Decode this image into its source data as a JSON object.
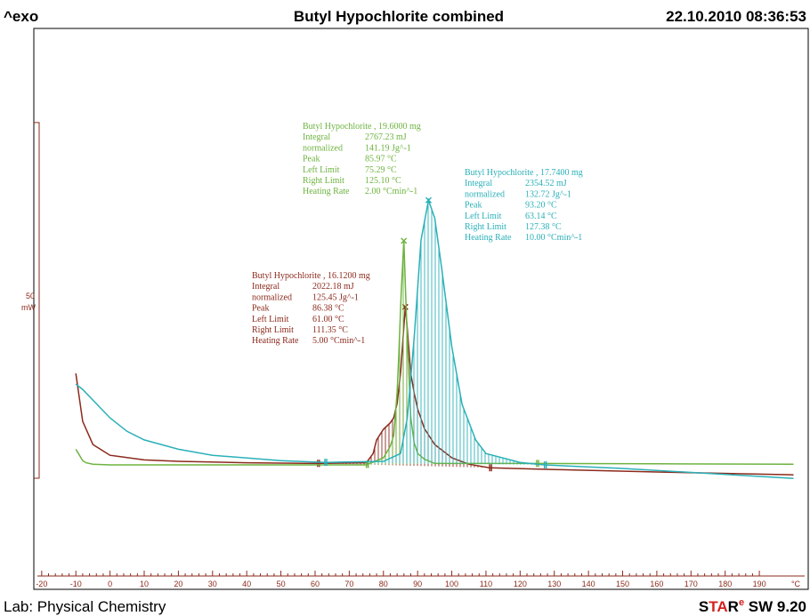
{
  "header": {
    "left": "^exo",
    "title": "Butyl Hypochlorite combined",
    "date": "22.10.2010 08:36:53"
  },
  "footer": {
    "lab": "Lab: Physical Chemistry",
    "brand": [
      "S",
      "TA",
      "R"
    ],
    "edition": "e",
    "version": " SW 9.20"
  },
  "chart_data": {
    "type": "line",
    "xlim": [
      -22.3,
      204.3
    ],
    "xticks": [
      -20,
      -10,
      0,
      10,
      20,
      30,
      40,
      50,
      60,
      70,
      80,
      90,
      100,
      110,
      120,
      130,
      140,
      150,
      160,
      170,
      180,
      190
    ],
    "x_unit": "°C",
    "ylim": [
      -17.6,
      61.25
    ],
    "scale_bar": {
      "value": 50,
      "label": "50",
      "unit": "mW"
    },
    "series": [
      {
        "name": "Butyl  Hypochlorite , 16.1200 mg",
        "color": "#8b2a1c",
        "peak": 86.38,
        "integration": [
          61.0,
          111.35
        ],
        "x": [
          -10,
          -8,
          -5,
          0,
          10,
          20,
          40,
          60,
          75,
          77,
          78,
          80,
          82,
          83,
          84,
          85,
          86.38,
          87,
          88,
          89,
          90,
          92,
          95,
          100,
          105,
          111,
          130,
          160,
          200
        ],
        "values": [
          12.75,
          6,
          2.75,
          1.25,
          0.6,
          0.4,
          0.2,
          0.1,
          0.2,
          1.5,
          3.4,
          4.9,
          5.8,
          6.5,
          8.5,
          12.75,
          22.1,
          19,
          12.75,
          10,
          7.75,
          5,
          2.75,
          0.9,
          0,
          -0.5,
          -0.75,
          -1.1,
          -1.5
        ],
        "rows": [
          [
            "Integral",
            "2022.18 mJ"
          ],
          [
            "  normalized",
            "125.45 Jg^-1"
          ],
          [
            "Peak",
            "86.38 °C"
          ],
          [
            "Left Limit",
            "61.00 °C"
          ],
          [
            "Right Limit",
            "111.35 °C"
          ],
          [
            "Heating Rate",
            "5.00 °Cmin^-1"
          ]
        ]
      },
      {
        "name": "Butyl  Hypochlorite , 19.6000 mg",
        "color": "#6db33f",
        "peak": 85.97,
        "integration": [
          75.29,
          125.1
        ],
        "x": [
          -10,
          -8,
          -7,
          -5,
          0,
          20,
          75,
          80,
          82,
          83,
          84,
          84.5,
          85.2,
          85.97,
          86.5,
          87,
          88,
          89,
          90,
          92,
          95,
          110,
          125,
          160,
          200
        ],
        "values": [
          2.1,
          0.5,
          0.2,
          0,
          -0.1,
          -0.1,
          -0.1,
          0.9,
          2.5,
          4,
          10,
          15.25,
          24,
          31.4,
          24,
          17.75,
          6.5,
          3,
          1.5,
          0.7,
          0.1,
          0.1,
          0.1,
          0.05,
          0
        ],
        "rows": [
          [
            "Integral",
            "2767.23 mJ"
          ],
          [
            "  normalized",
            "141.19 Jg^-1"
          ],
          [
            "Peak",
            "85.97 °C"
          ],
          [
            "Left Limit",
            "75.29 °C"
          ],
          [
            "Right Limit",
            "125.10 °C"
          ],
          [
            "Heating Rate",
            "2.00 °Cmin^-1"
          ]
        ]
      },
      {
        "name": "Butyl  Hypochlorite , 17.7400 mg",
        "color": "#2ab0b8",
        "peak": 93.2,
        "integration": [
          63.14,
          127.38
        ],
        "x": [
          -10,
          -8,
          -5,
          0,
          5,
          10,
          20,
          30,
          50,
          63,
          80,
          85,
          87,
          89,
          91,
          93.2,
          95,
          97,
          100,
          103,
          107,
          110,
          120,
          127,
          150,
          200
        ],
        "values": [
          11.25,
          10.5,
          9,
          6.5,
          4.6,
          3.4,
          2.1,
          1.25,
          0.5,
          0.25,
          0.4,
          1.5,
          6.5,
          17.75,
          31.5,
          37.1,
          34.6,
          27.75,
          16.5,
          8.4,
          3.4,
          1.5,
          0.25,
          -0.1,
          -0.6,
          -2
        ],
        "rows": [
          [
            "Integral",
            "2354.52 mJ"
          ],
          [
            "  normalized",
            "132.72 Jg^-1"
          ],
          [
            "Peak",
            "93.20 °C"
          ],
          [
            "Left Limit",
            "63.14 °C"
          ],
          [
            "Right Limit",
            "127.38 °C"
          ],
          [
            "Heating Rate",
            "10.00 °Cmin^-1"
          ]
        ]
      }
    ]
  }
}
